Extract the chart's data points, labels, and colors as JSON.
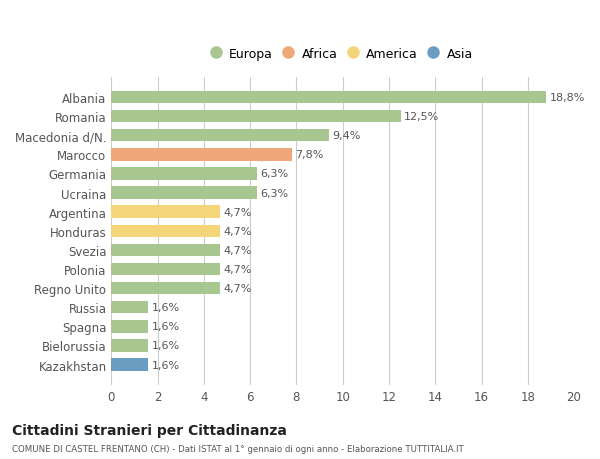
{
  "categories": [
    "Albania",
    "Romania",
    "Macedonia d/N.",
    "Marocco",
    "Germania",
    "Ucraina",
    "Argentina",
    "Honduras",
    "Svezia",
    "Polonia",
    "Regno Unito",
    "Russia",
    "Spagna",
    "Bielorussia",
    "Kazakhstan"
  ],
  "values": [
    18.8,
    12.5,
    9.4,
    7.8,
    6.3,
    6.3,
    4.7,
    4.7,
    4.7,
    4.7,
    4.7,
    1.6,
    1.6,
    1.6,
    1.6
  ],
  "labels": [
    "18,8%",
    "12,5%",
    "9,4%",
    "7,8%",
    "6,3%",
    "6,3%",
    "4,7%",
    "4,7%",
    "4,7%",
    "4,7%",
    "4,7%",
    "1,6%",
    "1,6%",
    "1,6%",
    "1,6%"
  ],
  "continents": [
    "Europa",
    "Europa",
    "Europa",
    "Africa",
    "Europa",
    "Europa",
    "America",
    "America",
    "Europa",
    "Europa",
    "Europa",
    "Europa",
    "Europa",
    "Europa",
    "Asia"
  ],
  "colors": {
    "Europa": "#a8c68f",
    "Africa": "#f0a87a",
    "America": "#f5d57a",
    "Asia": "#6b9dc2"
  },
  "legend_order": [
    "Europa",
    "Africa",
    "America",
    "Asia"
  ],
  "xlim": [
    0,
    20
  ],
  "xticks": [
    0,
    2,
    4,
    6,
    8,
    10,
    12,
    14,
    16,
    18,
    20
  ],
  "title": "Cittadini Stranieri per Cittadinanza",
  "subtitle": "COMUNE DI CASTEL FRENTANO (CH) - Dati ISTAT al 1° gennaio di ogni anno - Elaborazione TUTTITALIA.IT",
  "background_color": "#ffffff",
  "grid_color": "#cccccc"
}
